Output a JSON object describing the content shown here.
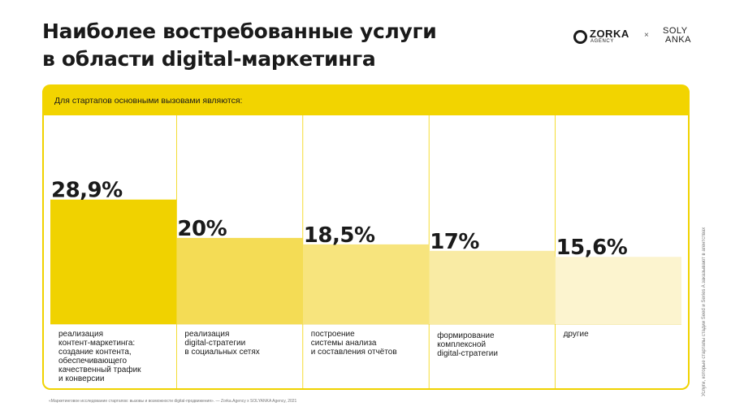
{
  "title": {
    "line1": "Наиболее востребованные услуги",
    "line2": "в области digital-маркетинга"
  },
  "logos": {
    "zorka": "ZORKA",
    "agency": "AGENCY",
    "separator": "×",
    "soly1": "SOLY",
    "soly2": "ANKA"
  },
  "header_text": "Для стартапов основными вызовами являются:",
  "footnote": "«Маркетинговое исследование стартапов: вызовы и возможности digital-продвижения». — Zorka.Agency x SOLYANKA Agency, 2021",
  "side_note": "Услуги, которые стартапы стадии Seed и Series A заказывают в агентствах",
  "chart_data": {
    "type": "bar",
    "title": "Наиболее востребованные услуги в области digital-маркетинга",
    "categories": [
      "реализация контент-маркетинга: создание контента, обеспечивающего качественный трафик и конверсии",
      "реализация digital-стратегии в социальных сетях",
      "построение системы анализа и составления отчётов",
      "формирование комплексной digital-стратегии",
      "другие"
    ],
    "category_lines": [
      [
        "реализация",
        "контент-маркетинга:",
        "создание контента,",
        "обеспечивающего",
        "качественный трафик",
        "и конверсии"
      ],
      [
        "реализация",
        "digital-стратегии",
        "в социальных сетях"
      ],
      [
        "построение",
        "системы анализа",
        "и составления отчётов"
      ],
      [
        "формирование",
        "комплексной",
        "digital-стратегии"
      ],
      [
        "другие"
      ]
    ],
    "values": [
      28.9,
      20,
      18.5,
      17,
      15.6
    ],
    "value_labels": [
      "28,9%",
      "20%",
      "18,5%",
      "17%",
      "15,6%"
    ],
    "colors": [
      "#f0d200",
      "#f4dc55",
      "#f7e47d",
      "#f9eba4",
      "#fcf4cf"
    ],
    "ylim": [
      0,
      40
    ],
    "grid": false,
    "legend": "none"
  }
}
